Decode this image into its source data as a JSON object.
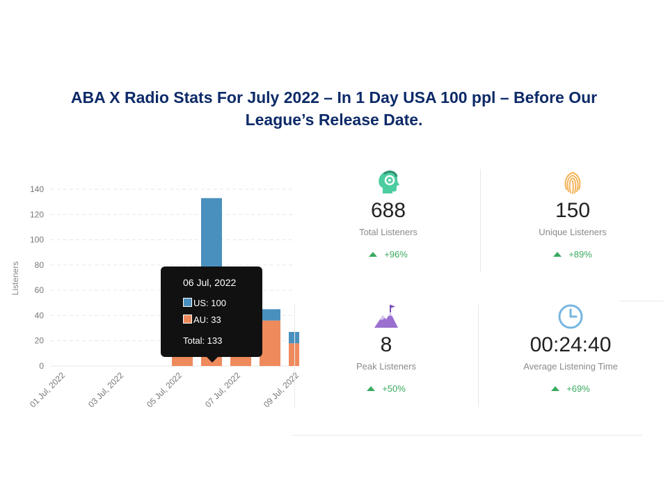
{
  "title": {
    "line1": "ABA X Radio Stats For July 2022 – In 1 Day USA 100 ppl – Before Our",
    "line2": "League’s Release Date."
  },
  "chart_data": {
    "type": "bar",
    "stacked": true,
    "ylabel": "Listeners",
    "ylim": [
      0,
      140
    ],
    "yticks": [
      0,
      20,
      40,
      60,
      80,
      100,
      120,
      140
    ],
    "categories": [
      "01 Jul, 2022",
      "02 Jul, 2022",
      "03 Jul, 2022",
      "04 Jul, 2022",
      "05 Jul, 2022",
      "06 Jul, 2022",
      "07 Jul, 2022",
      "08 Jul, 2022",
      "09 Jul, 2022"
    ],
    "xtick_labels": [
      "01 Jul, 2022",
      "03 Jul, 2022",
      "05 Jul, 2022",
      "07 Jul, 2022",
      "09 Jul, 2022"
    ],
    "series": [
      {
        "name": "AU",
        "color": "#ef8a5c",
        "values": [
          0,
          0,
          0,
          0,
          19,
          33,
          37,
          36,
          18
        ]
      },
      {
        "name": "US",
        "color": "#4a90be",
        "values": [
          0,
          0,
          0,
          0,
          0,
          100,
          8,
          9,
          9
        ]
      }
    ],
    "grid": true,
    "tooltip": {
      "date": "06 Jul, 2022",
      "us": "US: 100",
      "au": "AU: 33",
      "total": "Total: 133"
    }
  },
  "stats": [
    {
      "value": "688",
      "label": "Total Listeners",
      "change": "+96%",
      "icon": "headset-head-icon",
      "color": "#4ccda0"
    },
    {
      "value": "150",
      "label": "Unique Listeners",
      "change": "+89%",
      "icon": "fingerprint-icon",
      "color": "#f4b45a"
    },
    {
      "value": "8",
      "label": "Peak Listeners",
      "change": "+50%",
      "icon": "mountain-flag-icon",
      "color": "#9b6fd0"
    },
    {
      "value": "00:24:40",
      "label": "Average Listening Time",
      "change": "+69%",
      "icon": "clock-icon",
      "color": "#76b6e0"
    }
  ]
}
